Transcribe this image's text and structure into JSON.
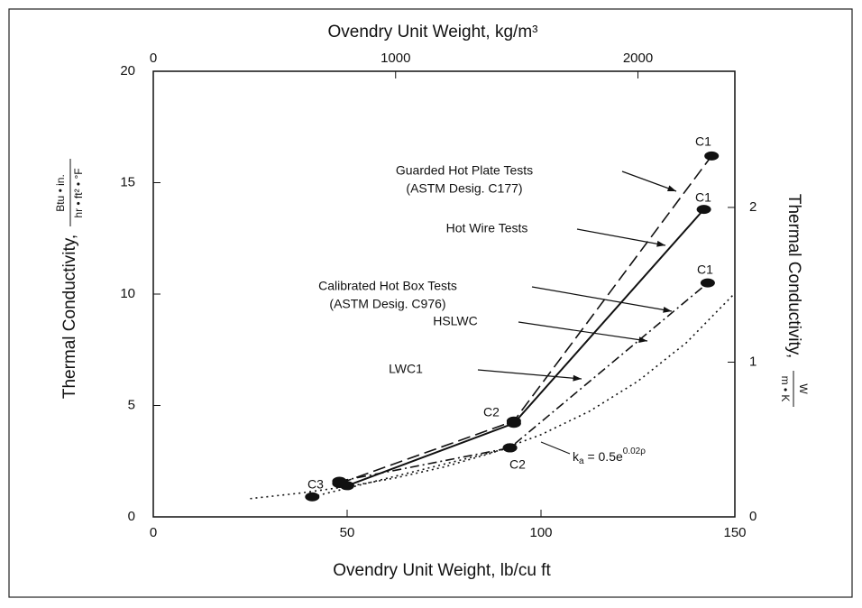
{
  "chart_data": {
    "type": "line",
    "xlabel": "Ovendry Unit Weight, lb/cu ft",
    "x2label": "Ovendry Unit Weight, kg/m³",
    "ylabel": {
      "text": "Thermal Conductivity,",
      "num": "Btu • in.",
      "den": "hr • ft² • °F"
    },
    "y2label": {
      "text": "Thermal Conductivity,",
      "num": "W",
      "den": "m • K"
    },
    "xlim": [
      0,
      150
    ],
    "xticks": [
      0,
      50,
      100,
      150
    ],
    "x2lim": [
      0,
      2400
    ],
    "x2ticks": [
      0,
      1000,
      2000
    ],
    "ylim": [
      0,
      20
    ],
    "yticks": [
      0,
      5,
      10,
      15,
      20
    ],
    "y2lim": [
      0,
      2.88
    ],
    "y2ticks": [
      0,
      1,
      2
    ],
    "series": [
      {
        "style": "dashed",
        "color": "#111",
        "markers": true,
        "x": [
          48,
          93,
          144
        ],
        "values": [
          1.5,
          4.3,
          16.2
        ]
      },
      {
        "style": "solid",
        "color": "#111",
        "markers": true,
        "x": [
          50,
          93,
          142
        ],
        "values": [
          1.4,
          4.2,
          13.8
        ]
      },
      {
        "style": "dashdot",
        "color": "#111",
        "markers": true,
        "x": [
          48,
          92,
          143
        ],
        "values": [
          1.6,
          3.1,
          10.5
        ]
      },
      {
        "style": "dotted",
        "color": "#111",
        "markers": true,
        "x": [
          41,
          92
        ],
        "values": [
          0.9,
          3.1
        ]
      },
      {
        "style": "dotted",
        "color": "#111",
        "markers": false,
        "x": [
          25,
          37.5,
          50,
          62.5,
          75,
          87.5,
          100,
          112.5,
          125,
          137.5,
          150
        ],
        "values": [
          0.82,
          1.06,
          1.36,
          1.75,
          2.24,
          2.88,
          3.69,
          4.74,
          6.09,
          7.82,
          10.04
        ]
      }
    ],
    "annotations": [
      {
        "lines": [
          "Guarded Hot Plate Tests",
          "(ASTM Desig. C177)"
        ]
      },
      {
        "lines": [
          "Hot Wire Tests"
        ]
      },
      {
        "lines": [
          "Calibrated Hot Box Tests",
          "(ASTM Desig. C976)"
        ]
      },
      {
        "lines": [
          "HSLWC"
        ]
      },
      {
        "lines": [
          "LWC1"
        ]
      },
      {
        "lines": [
          "C1"
        ]
      },
      {
        "lines": [
          "C1"
        ]
      },
      {
        "lines": [
          "C1"
        ]
      },
      {
        "lines": [
          "C2"
        ]
      },
      {
        "lines": [
          "C2"
        ]
      },
      {
        "lines": [
          "C3"
        ]
      }
    ],
    "formula": {
      "base": "k",
      "sub": "a",
      "mid": " = 0.5e",
      "sup": "0.02ρ"
    }
  }
}
